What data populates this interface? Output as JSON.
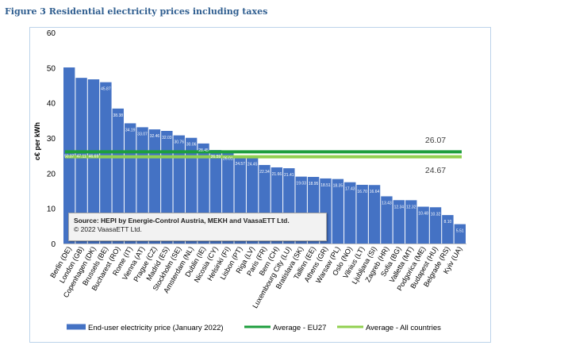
{
  "figure_title": "Figure 3 Residential electricity prices including taxes",
  "source_note": {
    "line1": "Source: HEPI by Energie-Control Austria, MEKH and VaasaETT Ltd.",
    "line2": "© 2022 VaasaETT Ltd."
  },
  "colors": {
    "bar": "#4472c4",
    "eu27_line": "#1e9e3e",
    "all_line": "#92d050",
    "title": "#2e5d8f"
  },
  "chart_data": {
    "type": "bar",
    "ylabel": "c€ per kWh",
    "ylim": [
      0,
      60
    ],
    "yticks": [
      0,
      10,
      20,
      30,
      40,
      50,
      60
    ],
    "grid": false,
    "legend_position": "bottom",
    "categories": [
      "Berlin (DE)",
      "London (GB)",
      "Copenhagen (DK)",
      "Brussels (BE)",
      "Bucharest (RO)",
      "Rome (IT)",
      "Vienna (AT)",
      "Prague (CZ)",
      "Madrid (ES)",
      "Stockholm (SE)",
      "Amsterdam (NL)",
      "Dublin (IE)",
      "Nicosia (CY)",
      "Helsinki (FI)",
      "Lisbon (PT)",
      "Riga (LV)",
      "Paris (FR)",
      "Bern (CH)",
      "Luxembourg City (LU)",
      "Bratislava (SK)",
      "Tallinn (EE)",
      "Athens (GR)",
      "Warsaw (PL)",
      "Oslo (NO)",
      "Vilnius (LT)",
      "Ljubljana (SI)",
      "Zagreb (HR)",
      "Sofia (BG)",
      "Valletta (MT)",
      "Podgorica (ME)",
      "Budapest (HU)",
      "Belgrade (RS)",
      "Kyiv (UA)"
    ],
    "value_labels": [
      "50.07",
      "47.11",
      "46.69",
      "45.87",
      "38.38",
      "34.19",
      "33.07",
      "32.46",
      "32.03",
      "30.76",
      "30.06",
      "28.45",
      "26.59",
      "26.01",
      "24.57",
      "24.45",
      "22.34",
      "21.66",
      "21.41",
      "19.03",
      "18.95",
      "18.51",
      "18.35",
      "17.43",
      "16.70",
      "16.64",
      "13.43",
      "12.34",
      "12.32",
      "10.48",
      "10.32",
      "8.10",
      "5.51"
    ],
    "series": [
      {
        "name": "End-user electricity price (January 2022)",
        "type": "bar",
        "values": [
          50.07,
          47.11,
          46.69,
          45.87,
          38.38,
          34.19,
          33.07,
          32.46,
          32.03,
          30.76,
          30.06,
          28.45,
          26.59,
          26.01,
          24.57,
          24.45,
          22.34,
          21.66,
          21.41,
          19.03,
          18.95,
          18.51,
          18.35,
          17.43,
          16.7,
          16.64,
          13.43,
          12.34,
          12.32,
          10.48,
          10.32,
          8.1,
          5.51
        ]
      },
      {
        "name": "Average - EU27",
        "type": "line",
        "value": 26.07,
        "label": "26.07"
      },
      {
        "name": "Average - All countries",
        "type": "line",
        "value": 24.67,
        "label": "24.67"
      }
    ]
  }
}
